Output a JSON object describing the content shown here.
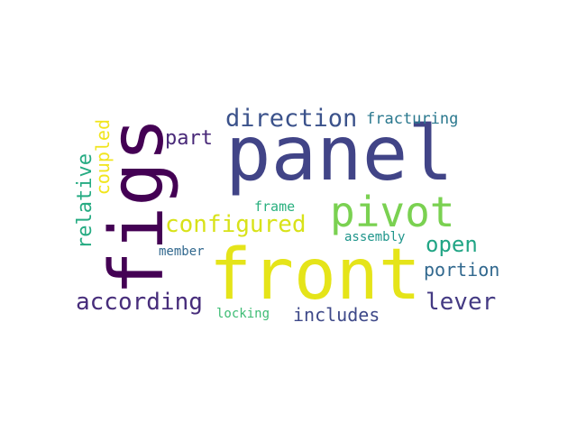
{
  "word_cloud": {
    "background": "#ffffff",
    "words": {
      "panel": {
        "text": "panel",
        "color": "#414487"
      },
      "front": {
        "text": "front",
        "color": "#e5e419"
      },
      "figs": {
        "text": "figs",
        "color": "#440154"
      },
      "pivot": {
        "text": "pivot",
        "color": "#7ad151"
      },
      "direction": {
        "text": "direction",
        "color": "#3b528b"
      },
      "configured": {
        "text": "configured",
        "color": "#d8e219"
      },
      "according": {
        "text": "according",
        "color": "#472d7b"
      },
      "lever": {
        "text": "lever",
        "color": "#443a83"
      },
      "open": {
        "text": "open",
        "color": "#21a585"
      },
      "relative": {
        "text": "relative",
        "color": "#25ab82"
      },
      "part": {
        "text": "part",
        "color": "#482878"
      },
      "portion": {
        "text": "portion",
        "color": "#31688e"
      },
      "includes": {
        "text": "includes",
        "color": "#3e4989"
      },
      "coupled": {
        "text": "coupled",
        "color": "#f1e51d"
      },
      "fracturing": {
        "text": "fracturing",
        "color": "#2a788e"
      },
      "frame": {
        "text": "frame",
        "color": "#2ab07f"
      },
      "assembly": {
        "text": "assembly",
        "color": "#1f958b"
      },
      "member": {
        "text": "member",
        "color": "#31688e"
      },
      "locking": {
        "text": "locking",
        "color": "#3dbc74"
      }
    }
  }
}
